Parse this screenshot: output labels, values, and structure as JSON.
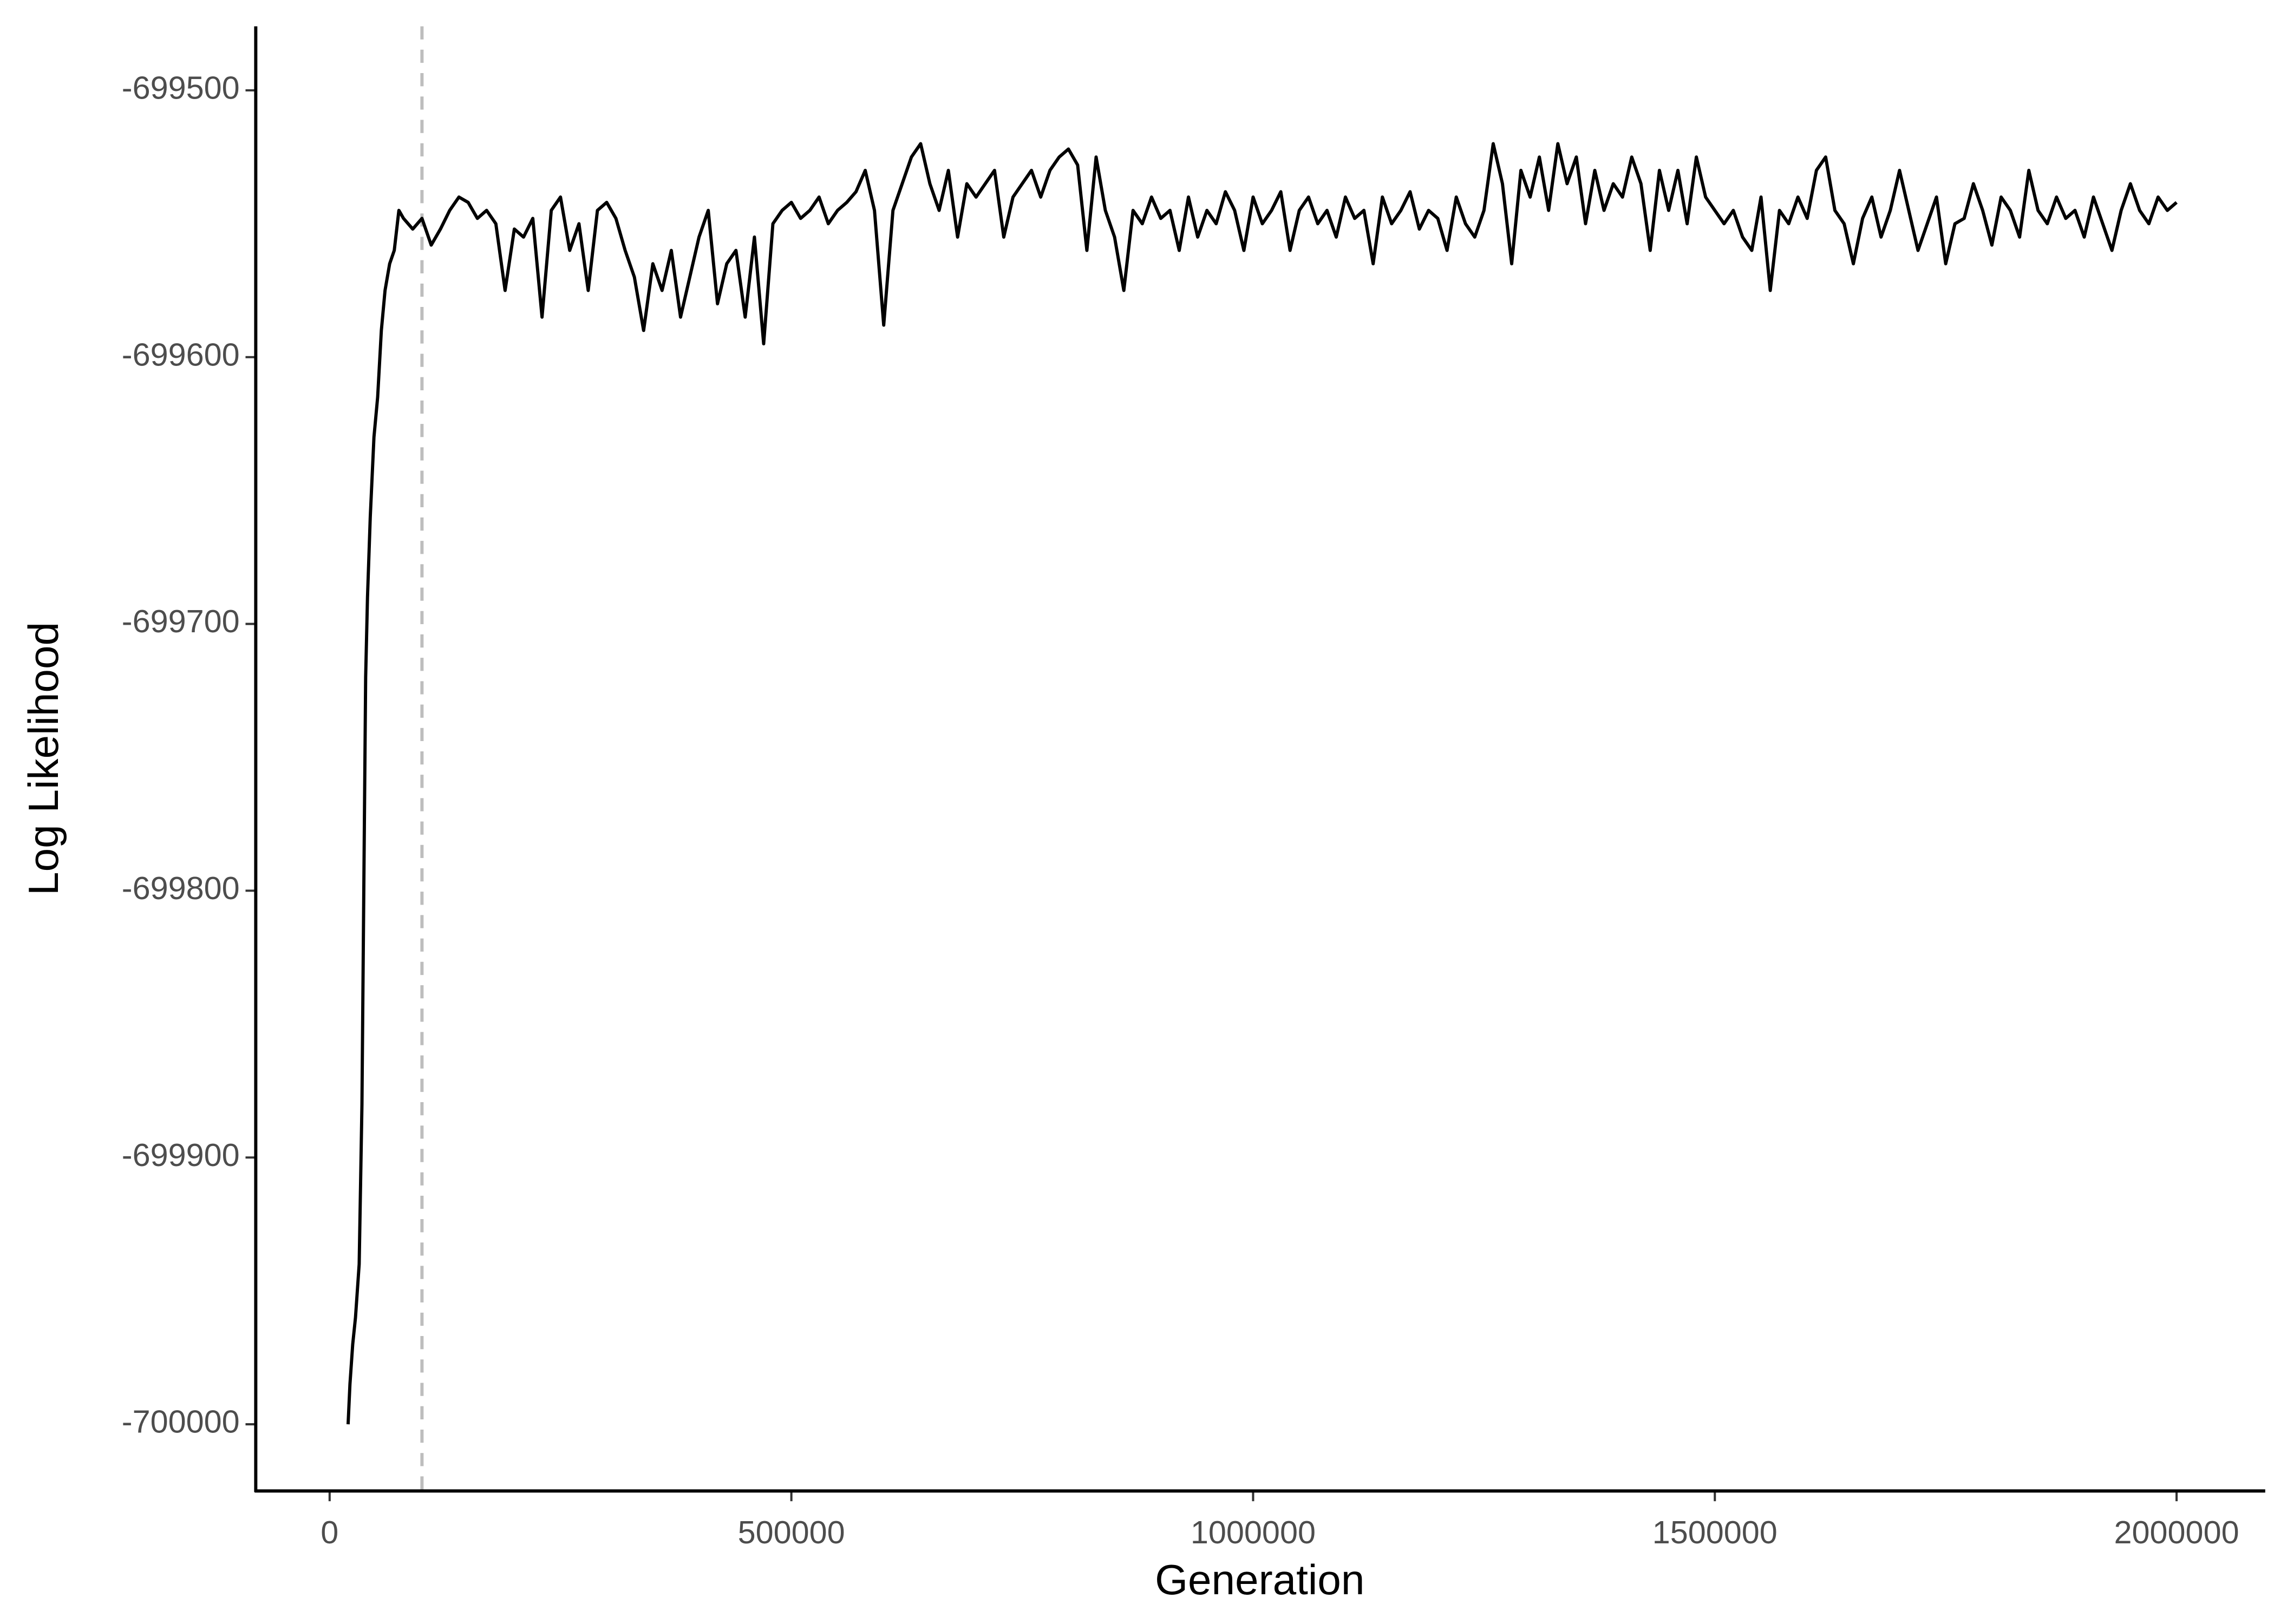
{
  "chart_data": {
    "type": "line",
    "xlabel": "Generation",
    "ylabel": "Log Likelihood",
    "xlim": [
      -80000,
      2096000
    ],
    "ylim": [
      -700025,
      -699476
    ],
    "xticks": [
      0,
      500000,
      1000000,
      1500000,
      2000000
    ],
    "yticks": [
      -700000,
      -699900,
      -699800,
      -699700,
      -699600,
      -699500
    ],
    "vline": 100000,
    "x": [
      20000,
      22000,
      25000,
      28000,
      32000,
      35000,
      37000,
      39000,
      41000,
      44000,
      48000,
      52000,
      56000,
      60000,
      65000,
      70000,
      75000,
      80000,
      90000,
      100000,
      110000,
      120000,
      130000,
      140000,
      150000,
      160000,
      170000,
      180000,
      190000,
      200000,
      210000,
      220000,
      230000,
      240000,
      250000,
      260000,
      270000,
      280000,
      290000,
      300000,
      310000,
      320000,
      330000,
      340000,
      350000,
      360000,
      370000,
      380000,
      390000,
      400000,
      410000,
      420000,
      430000,
      440000,
      450000,
      460000,
      470000,
      480000,
      490000,
      500000,
      510000,
      520000,
      530000,
      540000,
      550000,
      560000,
      570000,
      580000,
      590000,
      600000,
      610000,
      620000,
      630000,
      640000,
      650000,
      660000,
      670000,
      680000,
      690000,
      700000,
      710000,
      720000,
      730000,
      740000,
      750000,
      760000,
      770000,
      780000,
      790000,
      800000,
      810000,
      820000,
      830000,
      840000,
      850000,
      860000,
      870000,
      880000,
      890000,
      900000,
      910000,
      920000,
      930000,
      940000,
      950000,
      960000,
      970000,
      980000,
      990000,
      1000000,
      1010000,
      1020000,
      1030000,
      1040000,
      1050000,
      1060000,
      1070000,
      1080000,
      1090000,
      1100000,
      1110000,
      1120000,
      1130000,
      1140000,
      1150000,
      1160000,
      1170000,
      1180000,
      1190000,
      1200000,
      1210000,
      1220000,
      1230000,
      1240000,
      1250000,
      1260000,
      1270000,
      1280000,
      1290000,
      1300000,
      1310000,
      1320000,
      1330000,
      1340000,
      1350000,
      1360000,
      1370000,
      1380000,
      1390000,
      1400000,
      1410000,
      1420000,
      1430000,
      1440000,
      1450000,
      1460000,
      1470000,
      1480000,
      1490000,
      1500000,
      1510000,
      1520000,
      1530000,
      1540000,
      1550000,
      1560000,
      1570000,
      1580000,
      1590000,
      1600000,
      1610000,
      1620000,
      1630000,
      1640000,
      1650000,
      1660000,
      1670000,
      1680000,
      1690000,
      1700000,
      1710000,
      1720000,
      1730000,
      1740000,
      1750000,
      1760000,
      1770000,
      1780000,
      1790000,
      1800000,
      1810000,
      1820000,
      1830000,
      1840000,
      1850000,
      1860000,
      1870000,
      1880000,
      1890000,
      1900000,
      1910000,
      1920000,
      1930000,
      1940000,
      1950000,
      1960000,
      1970000,
      1980000,
      1990000,
      2000000
    ],
    "series": [
      {
        "color": "#000000",
        "values": [
          -700000,
          -699985,
          -699970,
          -699960,
          -699940,
          -699880,
          -699800,
          -699720,
          -699690,
          -699660,
          -699630,
          -699615,
          -699590,
          -699575,
          -699565,
          -699560,
          -699545,
          -699548,
          -699552,
          -699548,
          -699558,
          -699552,
          -699545,
          -699540,
          -699542,
          -699548,
          -699545,
          -699550,
          -699575,
          -699552,
          -699555,
          -699548,
          -699585,
          -699545,
          -699540,
          -699560,
          -699550,
          -699575,
          -699545,
          -699542,
          -699548,
          -699560,
          -699570,
          -699590,
          -699565,
          -699575,
          -699560,
          -699585,
          -699570,
          -699555,
          -699545,
          -699580,
          -699565,
          -699560,
          -699585,
          -699555,
          -699595,
          -699550,
          -699545,
          -699542,
          -699548,
          -699545,
          -699540,
          -699550,
          -699545,
          -699542,
          -699538,
          -699530,
          -699545,
          -699588,
          -699545,
          -699535,
          -699525,
          -699520,
          -699535,
          -699545,
          -699530,
          -699555,
          -699535,
          -699540,
          -699535,
          -699530,
          -699555,
          -699540,
          -699535,
          -699530,
          -699540,
          -699530,
          -699525,
          -699522,
          -699528,
          -699560,
          -699525,
          -699545,
          -699555,
          -699575,
          -699545,
          -699550,
          -699540,
          -699548,
          -699545,
          -699560,
          -699540,
          -699555,
          -699545,
          -699550,
          -699538,
          -699545,
          -699560,
          -699540,
          -699550,
          -699545,
          -699538,
          -699560,
          -699545,
          -699540,
          -699550,
          -699545,
          -699555,
          -699540,
          -699548,
          -699545,
          -699565,
          -699540,
          -699550,
          -699545,
          -699538,
          -699552,
          -699545,
          -699548,
          -699560,
          -699540,
          -699550,
          -699555,
          -699545,
          -699520,
          -699535,
          -699565,
          -699530,
          -699540,
          -699525,
          -699545,
          -699520,
          -699535,
          -699525,
          -699550,
          -699530,
          -699545,
          -699535,
          -699540,
          -699525,
          -699535,
          -699560,
          -699530,
          -699545,
          -699530,
          -699550,
          -699525,
          -699540,
          -699545,
          -699550,
          -699545,
          -699555,
          -699560,
          -699540,
          -699575,
          -699545,
          -699550,
          -699540,
          -699548,
          -699530,
          -699525,
          -699545,
          -699550,
          -699565,
          -699548,
          -699540,
          -699555,
          -699545,
          -699530,
          -699545,
          -699560,
          -699550,
          -699540,
          -699565,
          -699550,
          -699548,
          -699535,
          -699545,
          -699558,
          -699540,
          -699545,
          -699555,
          -699530,
          -699545,
          -699550,
          -699540,
          -699548,
          -699545,
          -699555,
          -699540,
          -699550,
          -699560,
          -699545,
          -699535,
          -699545,
          -699550,
          -699540,
          -699545,
          -699542
        ]
      }
    ]
  }
}
